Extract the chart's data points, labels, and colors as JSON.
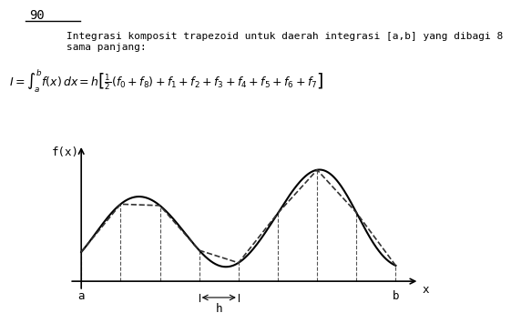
{
  "page_number": "90",
  "text_line1": "Integrasi komposit trapezoid untuk daerah integrasi [a,b] yang dibagi 8",
  "text_line2": "sama panjang:",
  "formula": "I = $\\int_a^b f(x)\\,dx = h[\\frac{1}{2}(f_0 + f_8) + f_1 + f_2 + f_3 + f_4 + f_5 + f_6 + f_7]$",
  "xlabel": "x",
  "ylabel": "f(x)",
  "label_a": "a",
  "label_b": "b",
  "label_h": "h",
  "num_intervals": 8,
  "background_color": "#ffffff",
  "curve_color": "#000000",
  "dashed_color": "#333333",
  "dashed_style": "--",
  "vline_color": "#555555",
  "font_color": "#000000"
}
